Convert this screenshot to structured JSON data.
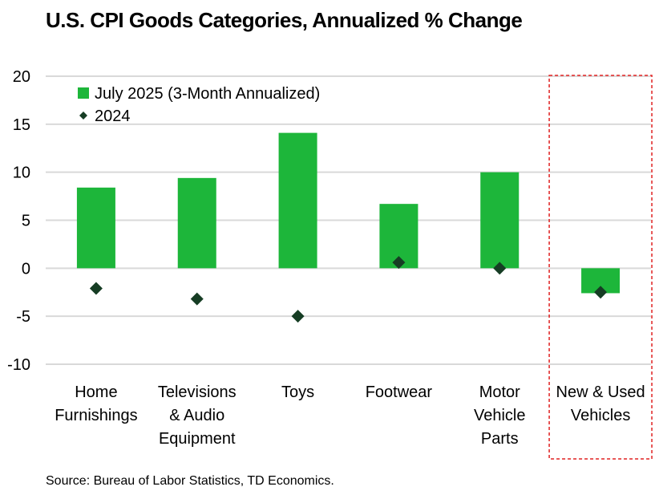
{
  "chart_data": {
    "type": "bar",
    "title": "U.S. CPI Goods Categories, Annualized % Change",
    "categories": [
      [
        "Home",
        "Furnishings"
      ],
      [
        "Televisions",
        "& Audio",
        "Equipment"
      ],
      [
        "Toys"
      ],
      [
        "Footwear"
      ],
      [
        "Motor",
        "Vehicle",
        "Parts"
      ],
      [
        "New & Used",
        "Vehicles"
      ]
    ],
    "series": [
      {
        "name": "July 2025 (3-Month Annualized)",
        "kind": "bar",
        "color": "#1db63a",
        "values": [
          8.4,
          9.4,
          14.1,
          6.7,
          10.0,
          -2.6
        ]
      },
      {
        "name": "2024",
        "kind": "marker",
        "color": "#163d24",
        "values": [
          -2.1,
          -3.2,
          -5.0,
          0.6,
          0.0,
          -2.5
        ]
      }
    ],
    "ylim": [
      -10,
      20
    ],
    "yticks": [
      20,
      15,
      10,
      5,
      0,
      -5,
      -10
    ],
    "highlight_category": "New & Used Vehicles",
    "highlight_color": "#e02020",
    "grid": true,
    "legend_position": "top-left"
  },
  "source": "Source: Bureau of Labor Statistics, TD Economics."
}
